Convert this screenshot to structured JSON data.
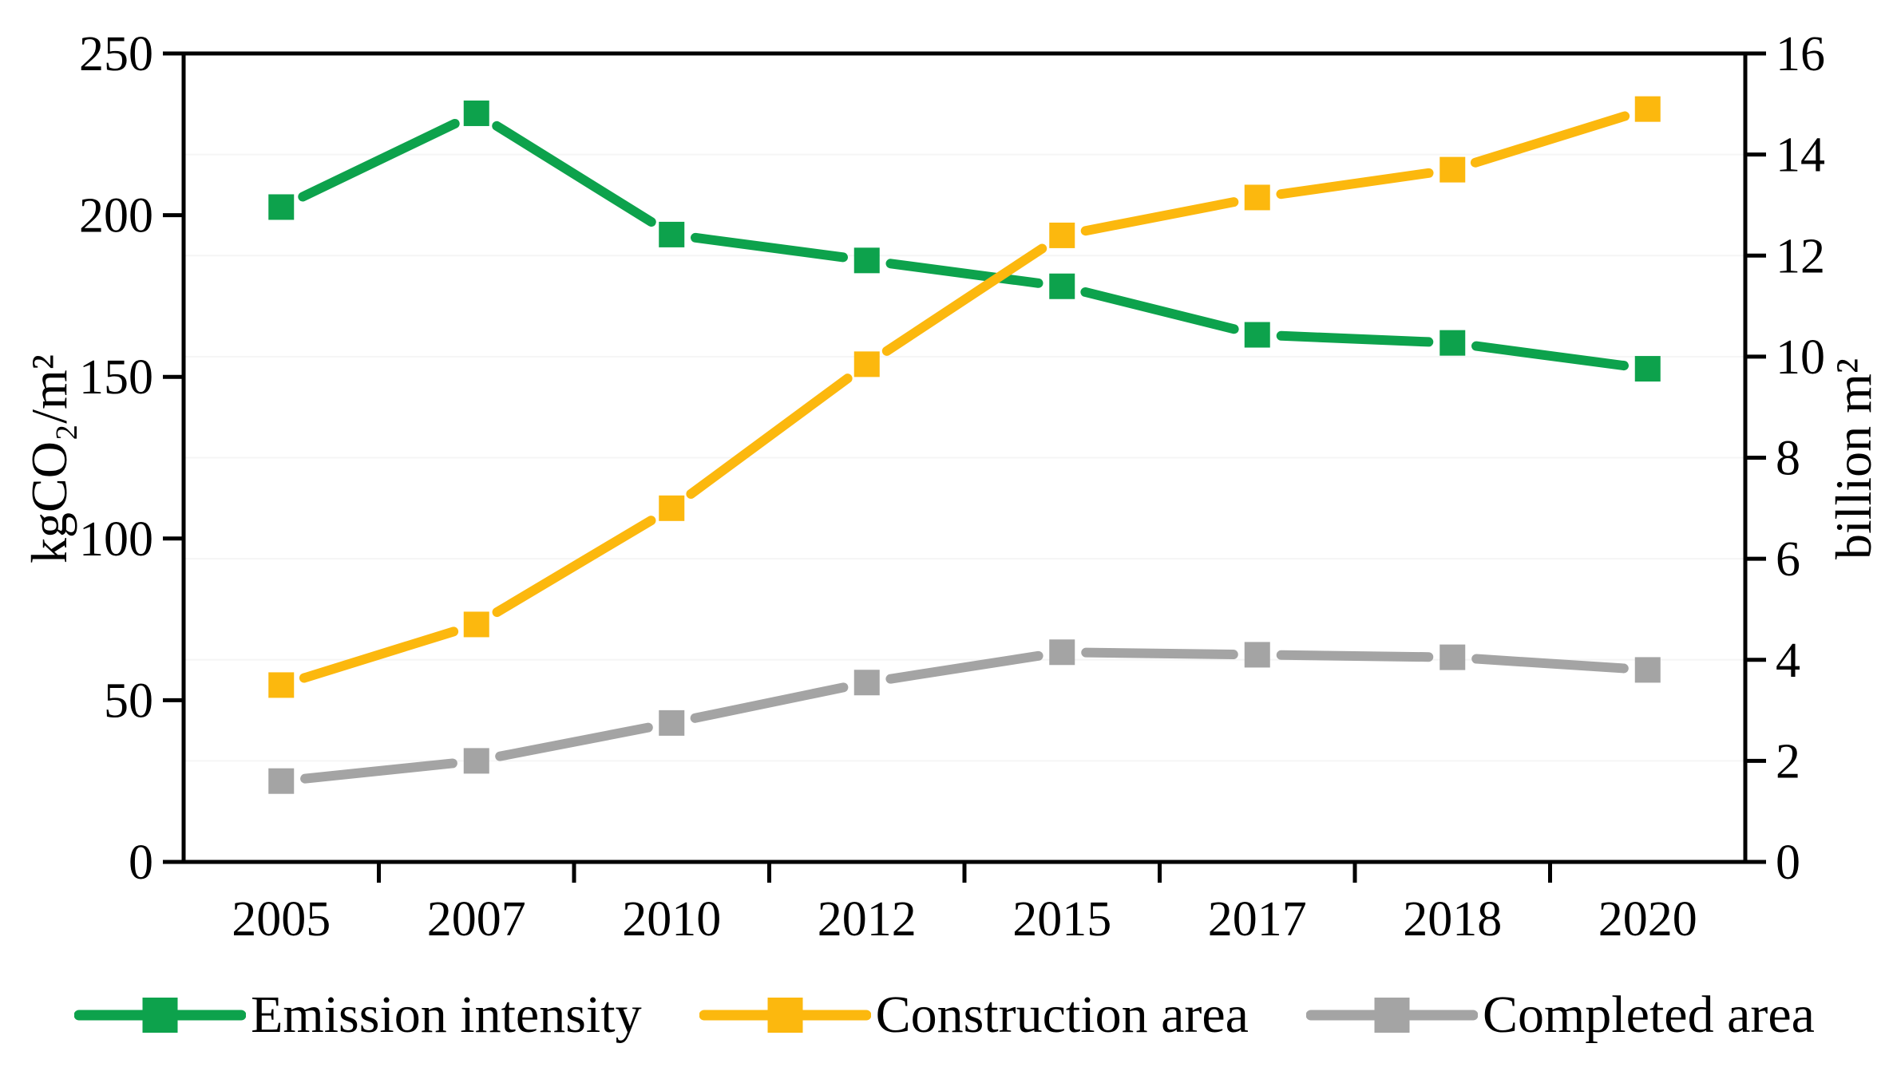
{
  "chart_data": {
    "type": "line",
    "categories": [
      "2005",
      "2007",
      "2010",
      "2012",
      "2015",
      "2017",
      "2018",
      "2020"
    ],
    "series": [
      {
        "name": "Emission intensity",
        "axis": "left",
        "color": "#0da24c",
        "marker": "square",
        "values": [
          202.5,
          231.5,
          194,
          186,
          178,
          163,
          160.5,
          152.5
        ]
      },
      {
        "name": "Construction area",
        "axis": "right",
        "color": "#fcb80e",
        "marker": "square",
        "values": [
          3.5,
          4.7,
          7.0,
          9.85,
          12.4,
          13.15,
          13.7,
          14.9
        ]
      },
      {
        "name": "Completed area",
        "axis": "right",
        "color": "#a4a4a4",
        "marker": "square",
        "values": [
          1.6,
          2.0,
          2.75,
          3.55,
          4.15,
          4.1,
          4.05,
          3.8
        ]
      }
    ],
    "left_axis": {
      "label": "kgCO₂/m²",
      "min": 0,
      "max": 250,
      "tick_step": 50,
      "tick_labels": [
        "0",
        "50",
        "100",
        "150",
        "200",
        "250"
      ]
    },
    "right_axis": {
      "label": "billion m²",
      "min": 0,
      "max": 16,
      "tick_step": 2,
      "tick_labels": [
        "0",
        "2",
        "4",
        "6",
        "8",
        "10",
        "12",
        "14",
        "16"
      ]
    },
    "legend_position": "bottom",
    "grid": {
      "horizontal": "faint",
      "color": "#f5f5f5"
    },
    "frame_color": "#000000",
    "background": "#ffffff"
  }
}
